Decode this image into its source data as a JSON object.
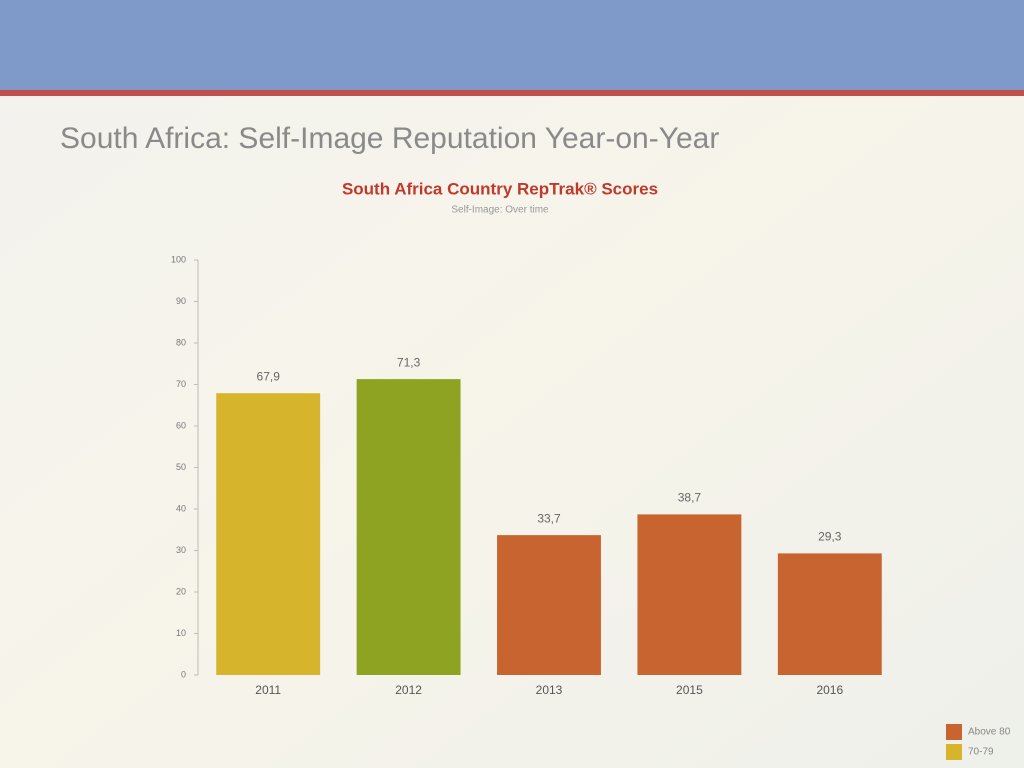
{
  "chart_data": {
    "type": "bar",
    "slide_title": "South Africa: Self-Image Reputation Year-on-Year",
    "title": "South Africa Country RepTrak® Scores",
    "subtitle": "Self-Image: Over time",
    "categories": [
      "2011",
      "2012",
      "2013",
      "2015",
      "2016"
    ],
    "values": [
      67.9,
      71.3,
      33.7,
      38.7,
      29.3
    ],
    "value_labels": [
      "67,9",
      "71,3",
      "33,7",
      "38,7",
      "29,3"
    ],
    "colors": [
      "#d6b52c",
      "#8fa322",
      "#c8642f",
      "#c8642f",
      "#c8642f"
    ],
    "ylim": [
      0,
      100
    ],
    "yticks": [
      0,
      10,
      20,
      30,
      40,
      50,
      60,
      70,
      80,
      90,
      100
    ],
    "legend": [
      {
        "label": "Above 80",
        "color": "#c8642f"
      },
      {
        "label": "70-79",
        "color": "#d6b52c"
      }
    ]
  }
}
